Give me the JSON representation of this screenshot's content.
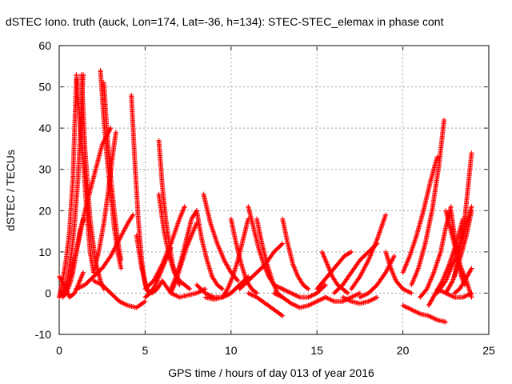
{
  "chart_data": {
    "type": "scatter",
    "title": "dSTEC Iono. truth (auck, Lon=174, Lat=-36, h=134): STEC-STEC_elemax in phase cont",
    "xlabel": "GPS time / hours of day 013 of year 2016",
    "ylabel": "dSTEC  / TECUs",
    "xlim": [
      0,
      25
    ],
    "ylim": [
      -10,
      60
    ],
    "xticks": [
      "0",
      "5",
      "10",
      "15",
      "20",
      "25"
    ],
    "yticks": [
      "-10",
      "0",
      "10",
      "20",
      "30",
      "40",
      "50",
      "60"
    ],
    "grid": true,
    "marker": "+",
    "color": "#ff0000",
    "series": [
      {
        "x": [
          0.0,
          0.3,
          0.6,
          0.9,
          1.1,
          1.4
        ],
        "y": [
          4,
          2,
          -1,
          0,
          2,
          5
        ]
      },
      {
        "x": [
          0.0,
          0.2,
          0.4,
          0.6,
          0.8,
          1.0
        ],
        "y": [
          -1,
          3,
          8,
          15,
          28,
          52
        ]
      },
      {
        "x": [
          0.2,
          0.4,
          0.6,
          0.8,
          1.0,
          1.2,
          1.4
        ],
        "y": [
          -1,
          0,
          2,
          5,
          10,
          15,
          18
        ]
      },
      {
        "x": [
          0.3,
          0.5,
          0.7,
          0.9,
          1.1,
          1.3,
          1.4
        ],
        "y": [
          0,
          4,
          9,
          17,
          28,
          45,
          53
        ]
      },
      {
        "x": [
          0.0,
          0.5,
          1.0,
          1.5,
          2.0,
          2.5,
          3.0
        ],
        "y": [
          -1,
          2,
          10,
          20,
          28,
          36,
          40
        ]
      },
      {
        "x": [
          1.0,
          1.2,
          1.4,
          1.6,
          1.8,
          2.0
        ],
        "y": [
          53,
          42,
          32,
          20,
          10,
          5
        ]
      },
      {
        "x": [
          1.3,
          1.5,
          1.8,
          2.1,
          2.4,
          2.6
        ],
        "y": [
          53,
          35,
          18,
          8,
          3,
          1
        ]
      },
      {
        "x": [
          1.0,
          1.5,
          2.0,
          2.5,
          3.0,
          3.5,
          4.0,
          4.3
        ],
        "y": [
          1,
          2,
          4,
          6,
          9,
          13,
          17,
          19
        ]
      },
      {
        "x": [
          2.4,
          2.6,
          2.8,
          3.0,
          3.2,
          3.4,
          3.6
        ],
        "y": [
          54,
          42,
          32,
          24,
          16,
          10,
          6
        ]
      },
      {
        "x": [
          2.6,
          2.8,
          3.0,
          3.2,
          3.4,
          3.6
        ],
        "y": [
          51,
          38,
          28,
          20,
          13,
          8
        ]
      },
      {
        "x": [
          2.0,
          2.3,
          2.6,
          2.9,
          3.1,
          3.3
        ],
        "y": [
          5,
          10,
          17,
          26,
          33,
          39
        ]
      },
      {
        "x": [
          2.0,
          2.5,
          3.0,
          3.5,
          4.0,
          4.5,
          5.0
        ],
        "y": [
          3,
          2,
          0,
          -2,
          -3,
          -3.5,
          -2
        ]
      },
      {
        "x": [
          4.2,
          4.4,
          4.6,
          4.8,
          5.0,
          5.2
        ],
        "y": [
          48,
          32,
          18,
          8,
          2,
          0
        ]
      },
      {
        "x": [
          4.5,
          4.8,
          5.1,
          5.4,
          5.7,
          6.0
        ],
        "y": [
          14,
          6,
          1,
          0,
          1,
          3
        ]
      },
      {
        "x": [
          5.0,
          5.3,
          5.6,
          5.9,
          6.2,
          6.5
        ],
        "y": [
          -1,
          0,
          2,
          5,
          8,
          11
        ]
      },
      {
        "x": [
          5.0,
          5.5,
          6.0,
          6.5,
          7.0,
          7.3
        ],
        "y": [
          1,
          3,
          7,
          12,
          18,
          21
        ]
      },
      {
        "x": [
          5.8,
          6.0,
          6.2,
          6.4,
          6.6,
          6.8,
          7.0
        ],
        "y": [
          37,
          26,
          18,
          12,
          7,
          4,
          2
        ]
      },
      {
        "x": [
          5.8,
          6.1,
          6.4,
          6.7,
          7.0,
          7.3,
          7.6
        ],
        "y": [
          24,
          15,
          9,
          5,
          3,
          2,
          1
        ]
      },
      {
        "x": [
          6.0,
          6.5,
          7.0,
          7.5,
          8.0,
          8.5
        ],
        "y": [
          3,
          0,
          -1,
          -0.5,
          0,
          1
        ]
      },
      {
        "x": [
          6.5,
          6.8,
          7.1,
          7.4,
          7.7,
          8.0
        ],
        "y": [
          1,
          4,
          8,
          13,
          18,
          20
        ]
      },
      {
        "x": [
          6.5,
          6.8,
          7.1,
          7.4,
          7.7,
          8.0
        ],
        "y": [
          0,
          3,
          7,
          11,
          14,
          17
        ]
      },
      {
        "x": [
          8.0,
          8.3,
          8.6,
          8.9,
          9.2,
          9.5
        ],
        "y": [
          20,
          13,
          8,
          4,
          2,
          1
        ]
      },
      {
        "x": [
          8.4,
          8.8,
          9.2,
          9.6,
          10.0,
          10.4
        ],
        "y": [
          24,
          17,
          12,
          8,
          5,
          3
        ]
      },
      {
        "x": [
          8.0,
          8.5,
          9.0,
          9.5,
          10.0,
          10.5
        ],
        "y": [
          2,
          0,
          -1,
          -1,
          0,
          2
        ]
      },
      {
        "x": [
          8.5,
          9.0,
          9.5,
          10.0,
          10.5,
          11.0
        ],
        "y": [
          -1,
          -1.5,
          -1,
          0,
          2,
          4
        ]
      },
      {
        "x": [
          9.5,
          9.8,
          10.1,
          10.4,
          10.7,
          11.0
        ],
        "y": [
          -1,
          1,
          4,
          8,
          13,
          18
        ]
      },
      {
        "x": [
          10.0,
          10.3,
          10.6,
          10.9,
          11.2,
          11.5
        ],
        "y": [
          18,
          12,
          7,
          3,
          1,
          0
        ]
      },
      {
        "x": [
          11.0,
          11.3,
          11.6,
          11.9,
          12.2,
          12.5,
          13.0
        ],
        "y": [
          21,
          16,
          11,
          7,
          4,
          2,
          1
        ]
      },
      {
        "x": [
          11.5,
          11.8,
          12.1,
          12.4,
          12.7,
          13.0
        ],
        "y": [
          18,
          12,
          7,
          3,
          0,
          -1
        ]
      },
      {
        "x": [
          11.0,
          11.5,
          12.0,
          12.5,
          13.0
        ],
        "y": [
          0,
          -1,
          -2.5,
          -4,
          -5.5
        ]
      },
      {
        "x": [
          10.5,
          11.0,
          11.5,
          12.0,
          12.5,
          13.0
        ],
        "y": [
          1,
          3,
          5,
          7,
          10,
          12
        ]
      },
      {
        "x": [
          13.0,
          13.3,
          13.6,
          13.9,
          14.2,
          14.5
        ],
        "y": [
          18,
          12,
          7,
          4,
          2,
          1
        ]
      },
      {
        "x": [
          12.5,
          13.0,
          13.5,
          14.0,
          14.5,
          15.0,
          15.5
        ],
        "y": [
          0,
          -1,
          -2.5,
          -3.5,
          -3,
          -2,
          -1
        ]
      },
      {
        "x": [
          13.0,
          13.5,
          14.0,
          14.5,
          15.0,
          15.5
        ],
        "y": [
          1,
          0,
          -1,
          -1,
          0,
          2
        ]
      },
      {
        "x": [
          15.0,
          15.4,
          15.8,
          16.2,
          16.6,
          17.0
        ],
        "y": [
          1,
          3,
          5,
          7,
          9,
          10
        ]
      },
      {
        "x": [
          15.3,
          15.6,
          15.9,
          16.2,
          16.5,
          16.8
        ],
        "y": [
          10,
          7,
          4,
          2,
          1,
          0
        ]
      },
      {
        "x": [
          15.5,
          16.0,
          16.5,
          17.0,
          17.5
        ],
        "y": [
          -1,
          -2,
          -2,
          -1,
          0
        ]
      },
      {
        "x": [
          16.0,
          16.5,
          17.0,
          17.5,
          18.0,
          18.5
        ],
        "y": [
          0,
          2,
          5,
          8,
          10,
          12
        ]
      },
      {
        "x": [
          16.5,
          17.0,
          17.5,
          18.0,
          18.5
        ],
        "y": [
          -1,
          -2,
          -2.5,
          -2,
          -1
        ]
      },
      {
        "x": [
          17.0,
          17.5,
          18.0,
          18.5,
          19.0
        ],
        "y": [
          1,
          4,
          8,
          13,
          19
        ]
      },
      {
        "x": [
          17.5,
          18.0,
          18.5,
          19.0,
          19.5
        ],
        "y": [
          -1,
          0,
          2,
          5,
          9
        ]
      },
      {
        "x": [
          19.0,
          19.3,
          19.6,
          20.0,
          20.5
        ],
        "y": [
          10,
          6,
          3,
          1,
          0
        ]
      },
      {
        "x": [
          20.0,
          20.5,
          21.0,
          21.5,
          22.0,
          22.5
        ],
        "y": [
          -3,
          -4,
          -5,
          -5.5,
          -6.5,
          -7
        ]
      },
      {
        "x": [
          20.0,
          20.4,
          20.8,
          21.2,
          21.6,
          22.0
        ],
        "y": [
          5,
          9,
          14,
          20,
          27,
          33
        ]
      },
      {
        "x": [
          20.5,
          20.9,
          21.3,
          21.7,
          22.1,
          22.4
        ],
        "y": [
          2,
          6,
          12,
          20,
          31,
          42
        ]
      },
      {
        "x": [
          21.0,
          21.4,
          21.8,
          22.2,
          22.5,
          22.8
        ],
        "y": [
          -1,
          1,
          5,
          10,
          16,
          21
        ]
      },
      {
        "x": [
          21.5,
          21.9,
          22.3,
          22.7,
          23.1,
          23.5
        ],
        "y": [
          -3,
          0,
          3,
          7,
          12,
          18
        ]
      },
      {
        "x": [
          22.0,
          22.5,
          23.0,
          23.5,
          24.0
        ],
        "y": [
          0,
          3,
          8,
          14,
          21
        ]
      },
      {
        "x": [
          22.5,
          22.8,
          23.1,
          23.4,
          23.7,
          24.0
        ],
        "y": [
          20,
          15,
          10,
          6,
          3,
          -1
        ]
      },
      {
        "x": [
          22.8,
          23.0,
          23.2,
          23.4,
          23.6
        ],
        "y": [
          20,
          14,
          8,
          4,
          2
        ]
      },
      {
        "x": [
          22.5,
          22.9,
          23.3,
          23.7,
          24.0
        ],
        "y": [
          0,
          3,
          8,
          14,
          20
        ]
      },
      {
        "x": [
          23.0,
          23.3,
          23.6,
          23.8,
          24.0
        ],
        "y": [
          4,
          10,
          18,
          26,
          34
        ]
      },
      {
        "x": [
          23.0,
          23.3,
          23.6,
          24.0
        ],
        "y": [
          0,
          1,
          3,
          6
        ]
      },
      {
        "x": [
          22.0,
          22.5,
          23.0,
          23.5,
          24.0
        ],
        "y": [
          1,
          0,
          -1,
          -1,
          0
        ]
      }
    ]
  }
}
